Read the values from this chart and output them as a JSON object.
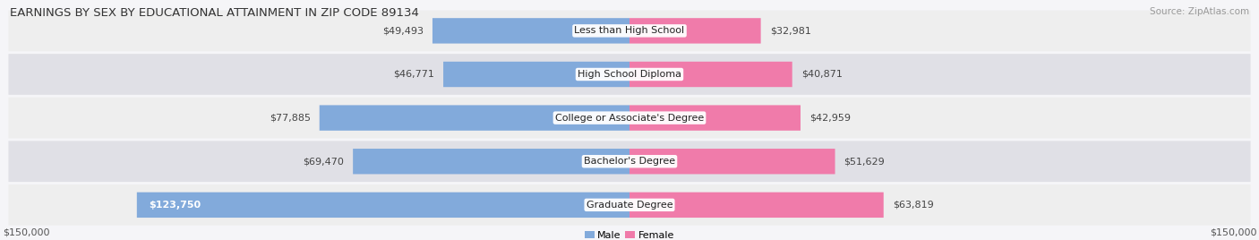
{
  "title": "EARNINGS BY SEX BY EDUCATIONAL ATTAINMENT IN ZIP CODE 89134",
  "source": "Source: ZipAtlas.com",
  "categories": [
    "Less than High School",
    "High School Diploma",
    "College or Associate's Degree",
    "Bachelor's Degree",
    "Graduate Degree"
  ],
  "male_values": [
    49493,
    46771,
    77885,
    69470,
    123750
  ],
  "female_values": [
    32981,
    40871,
    42959,
    51629,
    63819
  ],
  "male_color": "#82AADB",
  "female_color": "#F07BAA",
  "row_bg_color_light": "#EEEEEE",
  "row_bg_color_dark": "#E0E0E6",
  "max_val": 150000,
  "xlabel_left": "$150,000",
  "xlabel_right": "$150,000",
  "title_fontsize": 9.5,
  "source_fontsize": 7.5,
  "label_fontsize": 8,
  "tick_fontsize": 8,
  "legend_fontsize": 8,
  "background_color": "#F5F5F8"
}
